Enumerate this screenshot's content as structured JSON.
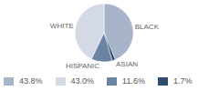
{
  "chart_data": {
    "type": "pie",
    "categories": [
      "BLACK",
      "WHITE",
      "HISPANIC",
      "ASIAN"
    ],
    "values": [
      43.8,
      43.0,
      11.6,
      1.7
    ],
    "value_labels": [
      "43.8%",
      "43.0%",
      "11.6%",
      "1.7%"
    ],
    "colors": [
      "#a6b3c8",
      "#d4dae5",
      "#6c84a4",
      "#2f4c6d"
    ],
    "legend": "bottom"
  }
}
